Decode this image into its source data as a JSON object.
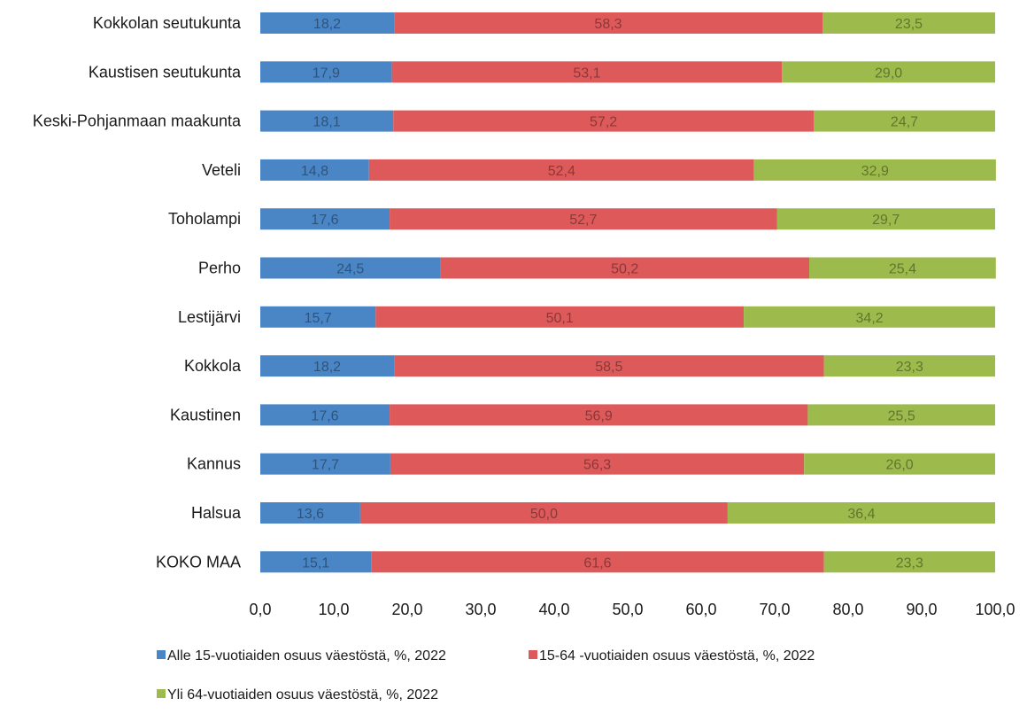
{
  "chart_data": {
    "type": "bar",
    "orientation": "horizontal",
    "stacked": true,
    "categories": [
      "Kokkolan seutukunta",
      "Kaustisen seutukunta",
      "Keski-Pohjanmaan maakunta",
      "Veteli",
      "Toholampi",
      "Perho",
      "Lestijärvi",
      "Kokkola",
      "Kaustinen",
      "Kannus",
      "Halsua",
      "KOKO MAA"
    ],
    "series": [
      {
        "name": "Alle 15-vuotiaiden osuus väestöstä, %, 2022",
        "color": "#4a86c5",
        "values": [
          18.2,
          17.9,
          18.1,
          14.8,
          17.6,
          24.5,
          15.7,
          18.2,
          17.6,
          17.7,
          13.6,
          15.1
        ],
        "labels": [
          "18,2",
          "17,9",
          "18,1",
          "14,8",
          "17,6",
          "24,5",
          "15,7",
          "18,2",
          "17,6",
          "17,7",
          "13,6",
          "15,1"
        ]
      },
      {
        "name": "15-64 -vuotiaiden osuus väestöstä, %, 2022",
        "color": "#de5a5a",
        "values": [
          58.3,
          53.1,
          57.2,
          52.4,
          52.7,
          50.2,
          50.1,
          58.5,
          56.9,
          56.3,
          50.0,
          61.6
        ],
        "labels": [
          "58,3",
          "53,1",
          "57,2",
          "52,4",
          "52,7",
          "50,2",
          "50,1",
          "58,5",
          "56,9",
          "56,3",
          "50,0",
          "61,6"
        ]
      },
      {
        "name": "Yli 64-vuotiaiden osuus väestöstä, %, 2022",
        "color": "#9dbb4c",
        "values": [
          23.5,
          29.0,
          24.7,
          32.9,
          29.7,
          25.4,
          34.2,
          23.3,
          25.5,
          26.0,
          36.4,
          23.3
        ],
        "labels": [
          "23,5",
          "29,0",
          "24,7",
          "32,9",
          "29,7",
          "25,4",
          "34,2",
          "23,3",
          "25,5",
          "26,0",
          "36,4",
          "23,3"
        ]
      }
    ],
    "xlim": [
      0,
      100
    ],
    "x_ticks": [
      "0,0",
      "10,0",
      "20,0",
      "30,0",
      "40,0",
      "50,0",
      "60,0",
      "70,0",
      "80,0",
      "90,0",
      "100,0"
    ],
    "legend_position": "bottom",
    "grid": false
  }
}
